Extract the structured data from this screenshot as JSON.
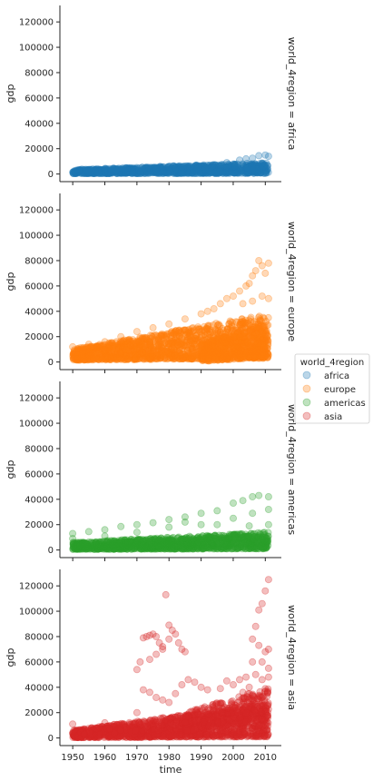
{
  "chart_data": {
    "type": "scatter",
    "x_label": "time",
    "y_label": "gdp",
    "x_ticks": [
      1950,
      1960,
      1970,
      1980,
      1990,
      2000,
      2010
    ],
    "x_range": [
      1946,
      2015
    ],
    "y_ticks": [
      0,
      20000,
      40000,
      60000,
      80000,
      100000,
      120000
    ],
    "y_range": [
      -6000,
      133000
    ],
    "shared_axes": true,
    "grid": false,
    "marker": "circle",
    "opacity": 0.3,
    "legend": {
      "title": "world_4region",
      "placement": "right",
      "entries": [
        "africa",
        "europe",
        "americas",
        "asia"
      ]
    },
    "colors": {
      "africa": "#1f77b4",
      "europe": "#ff7f0e",
      "americas": "#2ca02c",
      "asia": "#d62728"
    },
    "panels": [
      {
        "facet_label": "world_4region = africa",
        "series": "africa",
        "bands": [
          {
            "x0": 1950,
            "x1": 2011,
            "lo0": 400,
            "lo1": 600,
            "hi0": 3500,
            "hi1": 9000,
            "count": 1200
          }
        ],
        "points": [
          [
            1978,
            5500
          ],
          [
            1980,
            6000
          ],
          [
            1992,
            7000
          ],
          [
            1998,
            9000
          ],
          [
            2002,
            11000
          ],
          [
            2004,
            12000
          ],
          [
            2006,
            12500
          ],
          [
            2008,
            14500
          ],
          [
            2010,
            15000
          ],
          [
            2011,
            14000
          ]
        ]
      },
      {
        "facet_label": "world_4region = europe",
        "series": "europe",
        "bands": [
          {
            "x0": 1950,
            "x1": 2011,
            "lo0": 1500,
            "lo1": 3000,
            "hi0": 10000,
            "hi1": 38000,
            "count": 1600
          },
          {
            "x0": 1990,
            "x1": 2011,
            "lo0": 500,
            "lo1": 4000,
            "hi0": 15000,
            "hi1": 30000,
            "count": 500
          }
        ],
        "points": [
          [
            1950,
            12000
          ],
          [
            1955,
            14000
          ],
          [
            1960,
            16000
          ],
          [
            1965,
            20000
          ],
          [
            1970,
            24000
          ],
          [
            1975,
            27000
          ],
          [
            1980,
            30000
          ],
          [
            1985,
            34000
          ],
          [
            1990,
            38000
          ],
          [
            1992,
            40000
          ],
          [
            1994,
            42000
          ],
          [
            1996,
            46000
          ],
          [
            1998,
            50000
          ],
          [
            2000,
            52000
          ],
          [
            2002,
            56000
          ],
          [
            2004,
            60000
          ],
          [
            2005,
            62000
          ],
          [
            2006,
            68000
          ],
          [
            2007,
            72000
          ],
          [
            2008,
            80000
          ],
          [
            2009,
            76000
          ],
          [
            2010,
            70000
          ],
          [
            2011,
            78000
          ],
          [
            2003,
            46000
          ],
          [
            2006,
            48000
          ],
          [
            2009,
            52000
          ],
          [
            2011,
            50000
          ]
        ]
      },
      {
        "facet_label": "world_4region = americas",
        "series": "americas",
        "bands": [
          {
            "x0": 1950,
            "x1": 2011,
            "lo0": 500,
            "lo1": 1000,
            "hi0": 6000,
            "hi1": 14000,
            "count": 1300
          }
        ],
        "points": [
          [
            1950,
            13000
          ],
          [
            1955,
            14500
          ],
          [
            1960,
            16000
          ],
          [
            1965,
            18500
          ],
          [
            1970,
            20000
          ],
          [
            1975,
            21500
          ],
          [
            1980,
            24000
          ],
          [
            1985,
            26000
          ],
          [
            1990,
            29000
          ],
          [
            1995,
            31000
          ],
          [
            2000,
            37000
          ],
          [
            2003,
            39000
          ],
          [
            2006,
            42000
          ],
          [
            2008,
            43000
          ],
          [
            2011,
            42000
          ],
          [
            1950,
            9000
          ],
          [
            1960,
            11000
          ],
          [
            1970,
            14000
          ],
          [
            1980,
            18000
          ],
          [
            1990,
            20000
          ],
          [
            2000,
            25000
          ],
          [
            2006,
            29000
          ],
          [
            2011,
            32000
          ],
          [
            1985,
            22000
          ],
          [
            1995,
            20000
          ],
          [
            2005,
            19000
          ],
          [
            2011,
            20000
          ]
        ]
      },
      {
        "facet_label": "world_4region = asia",
        "series": "asia",
        "bands": [
          {
            "x0": 1950,
            "x1": 2011,
            "lo0": 300,
            "lo1": 1000,
            "hi0": 6000,
            "hi1": 28000,
            "count": 1500
          },
          {
            "x0": 1985,
            "x1": 2011,
            "lo0": 5000,
            "lo1": 15000,
            "hi0": 20000,
            "hi1": 40000,
            "count": 400
          }
        ],
        "points": [
          [
            1950,
            11000
          ],
          [
            1960,
            12000
          ],
          [
            1970,
            20000
          ],
          [
            1970,
            54000
          ],
          [
            1971,
            60000
          ],
          [
            1972,
            79000
          ],
          [
            1973,
            80000
          ],
          [
            1974,
            81000
          ],
          [
            1975,
            82000
          ],
          [
            1976,
            80000
          ],
          [
            1977,
            75000
          ],
          [
            1978,
            70000
          ],
          [
            1979,
            113000
          ],
          [
            1980,
            89000
          ],
          [
            1981,
            85000
          ],
          [
            1982,
            82000
          ],
          [
            1983,
            75000
          ],
          [
            1984,
            70000
          ],
          [
            1985,
            68000
          ],
          [
            1974,
            62000
          ],
          [
            1976,
            66000
          ],
          [
            1978,
            72000
          ],
          [
            1980,
            78000
          ],
          [
            1972,
            38000
          ],
          [
            1974,
            36000
          ],
          [
            1976,
            32000
          ],
          [
            1978,
            30000
          ],
          [
            1980,
            28000
          ],
          [
            1982,
            35000
          ],
          [
            1984,
            42000
          ],
          [
            1986,
            46000
          ],
          [
            1988,
            44000
          ],
          [
            1990,
            40000
          ],
          [
            1992,
            38000
          ],
          [
            1996,
            39000
          ],
          [
            1998,
            45000
          ],
          [
            2000,
            42000
          ],
          [
            2002,
            46000
          ],
          [
            2004,
            48000
          ],
          [
            2006,
            60000
          ],
          [
            2006,
            78000
          ],
          [
            2007,
            88000
          ],
          [
            2008,
            73000
          ],
          [
            2008,
            101000
          ],
          [
            2009,
            106000
          ],
          [
            2010,
            68000
          ],
          [
            2010,
            116000
          ],
          [
            2011,
            125000
          ],
          [
            2011,
            70000
          ],
          [
            2009,
            60000
          ],
          [
            2011,
            55000
          ],
          [
            2003,
            36000
          ],
          [
            2005,
            40000
          ],
          [
            2007,
            50000
          ],
          [
            2009,
            46000
          ],
          [
            2011,
            48000
          ]
        ]
      }
    ]
  }
}
